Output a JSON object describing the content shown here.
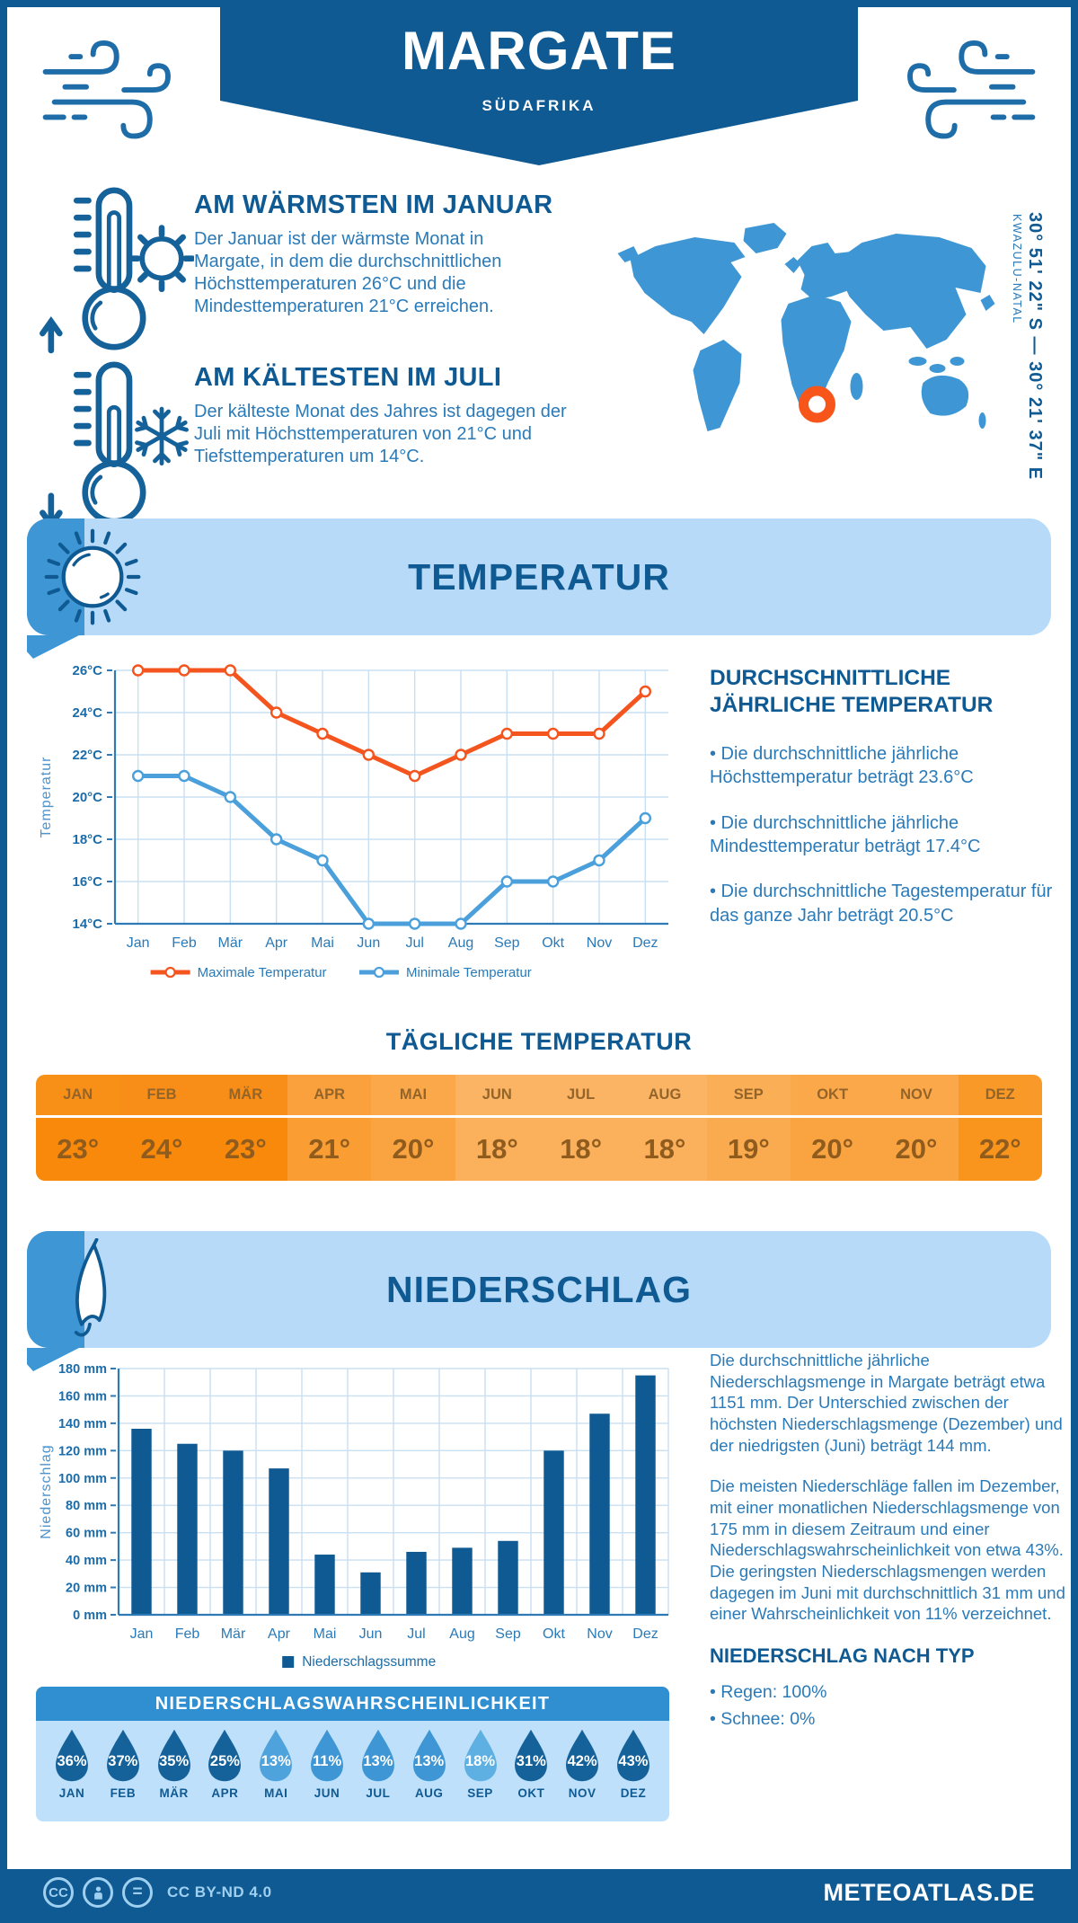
{
  "header": {
    "title": "MARGATE",
    "subtitle": "SÜDAFRIKA"
  },
  "location": {
    "coordinates": "30° 51' 22\" S — 30° 21' 37\" E",
    "region": "KWAZULU-NATAL"
  },
  "highlights": {
    "warmest": {
      "heading": "AM WÄRMSTEN IM JANUAR",
      "text": "Der Januar ist der wärmste Monat in Margate, in dem die durchschnittlichen Höchsttemperaturen 26°C und die Mindesttemperaturen 21°C erreichen."
    },
    "coldest": {
      "heading": "AM KÄLTESTEN IM JULI",
      "text": "Der kälteste Monat des Jahres ist dagegen der Juli mit Höchsttemperaturen von 21°C und Tiefsttemperaturen um 14°C."
    }
  },
  "temperature": {
    "section_title": "TEMPERATUR",
    "annual": {
      "heading": "DURCHSCHNITTLICHE JÄHRLICHE TEMPERATUR",
      "bullets": [
        "• Die durchschnittliche jährliche Höchsttemperatur beträgt 23.6°C",
        "• Die durchschnittliche jährliche Mindesttemperatur beträgt 17.4°C",
        "• Die durchschnittliche Tagestemperatur für das ganze Jahr beträgt 20.5°C"
      ]
    },
    "daily": {
      "title": "TÄGLICHE TEMPERATUR",
      "months": [
        "JAN",
        "FEB",
        "MÄR",
        "APR",
        "MAI",
        "JUN",
        "JUL",
        "AUG",
        "SEP",
        "OKT",
        "NOV",
        "DEZ"
      ],
      "values": [
        "23°",
        "24°",
        "23°",
        "21°",
        "20°",
        "18°",
        "18°",
        "18°",
        "19°",
        "20°",
        "20°",
        "22°"
      ],
      "cell_colors": [
        "#F8890B",
        "#F8890B",
        "#F8890B",
        "#FA9D33",
        "#FAA441",
        "#FBB05C",
        "#FBB05C",
        "#FBB05C",
        "#FAAB4F",
        "#FAA441",
        "#FAA441",
        "#F9941D"
      ]
    }
  },
  "precipitation": {
    "section_title": "NIEDERSCHLAG",
    "paragraphs": [
      "Die durchschnittliche jährliche Niederschlagsmenge in Margate beträgt etwa 1151 mm. Der Unterschied zwischen der höchsten Niederschlagsmenge (Dezember) und der niedrigsten (Juni) beträgt 144 mm.",
      "Die meisten Niederschläge fallen im Dezember, mit einer monatlichen Niederschlagsmenge von 175 mm in diesem Zeitraum und einer Niederschlagswahrscheinlichkeit von etwa 43%. Die geringsten Niederschlagsmengen werden dagegen im Juni mit durchschnittlich 31 mm und einer Wahrscheinlichkeit von 11% verzeichnet."
    ],
    "by_type": {
      "heading": "NIEDERSCHLAG NACH TYP",
      "bullets": [
        "• Regen: 100%",
        "• Schnee: 0%"
      ]
    },
    "probability": {
      "title": "NIEDERSCHLAGSWAHRSCHEINLICHKEIT",
      "months": [
        "JAN",
        "FEB",
        "MÄR",
        "APR",
        "MAI",
        "JUN",
        "JUL",
        "AUG",
        "SEP",
        "OKT",
        "NOV",
        "DEZ"
      ],
      "values": [
        "36%",
        "37%",
        "35%",
        "25%",
        "13%",
        "11%",
        "13%",
        "13%",
        "18%",
        "31%",
        "42%",
        "43%"
      ],
      "drop_colors": [
        "#15619A",
        "#15619A",
        "#15619A",
        "#15619A",
        "#4FA3DC",
        "#3E97D4",
        "#3E97D4",
        "#3E97D4",
        "#5FB0E2",
        "#15619A",
        "#15619A",
        "#15619A"
      ]
    }
  },
  "footer": {
    "license": "CC BY-ND 4.0",
    "site": "METEOATLAS.DE"
  },
  "chart_data": [
    {
      "type": "line",
      "title": "",
      "ylabel": "Temperatur",
      "categories": [
        "Jan",
        "Feb",
        "Mär",
        "Apr",
        "Mai",
        "Jun",
        "Jul",
        "Aug",
        "Sep",
        "Okt",
        "Nov",
        "Dez"
      ],
      "series": [
        {
          "name": "Maximale Temperatur",
          "color": "#F4551E",
          "values": [
            26,
            26,
            26,
            24,
            23,
            22,
            21,
            22,
            23,
            23,
            23,
            25
          ]
        },
        {
          "name": "Minimale Temperatur",
          "color": "#4BA0DB",
          "values": [
            21,
            21,
            20,
            18,
            17,
            14,
            14,
            14,
            16,
            16,
            17,
            19
          ]
        }
      ],
      "ylim": [
        14,
        26
      ],
      "ytick_step": 2,
      "ytick_suffix": "°C",
      "grid": true,
      "legend_position": "bottom"
    },
    {
      "type": "bar",
      "title": "",
      "ylabel": "Niederschlag",
      "categories": [
        "Jan",
        "Feb",
        "Mär",
        "Apr",
        "Mai",
        "Jun",
        "Jul",
        "Aug",
        "Sep",
        "Okt",
        "Nov",
        "Dez"
      ],
      "series": [
        {
          "name": "Niederschlagssumme",
          "color": "#0F5A93",
          "values": [
            136,
            125,
            120,
            107,
            44,
            31,
            46,
            49,
            54,
            120,
            147,
            175
          ]
        }
      ],
      "ylim": [
        0,
        180
      ],
      "ytick_step": 20,
      "ytick_suffix": " mm",
      "grid": true,
      "legend_position": "bottom"
    }
  ]
}
